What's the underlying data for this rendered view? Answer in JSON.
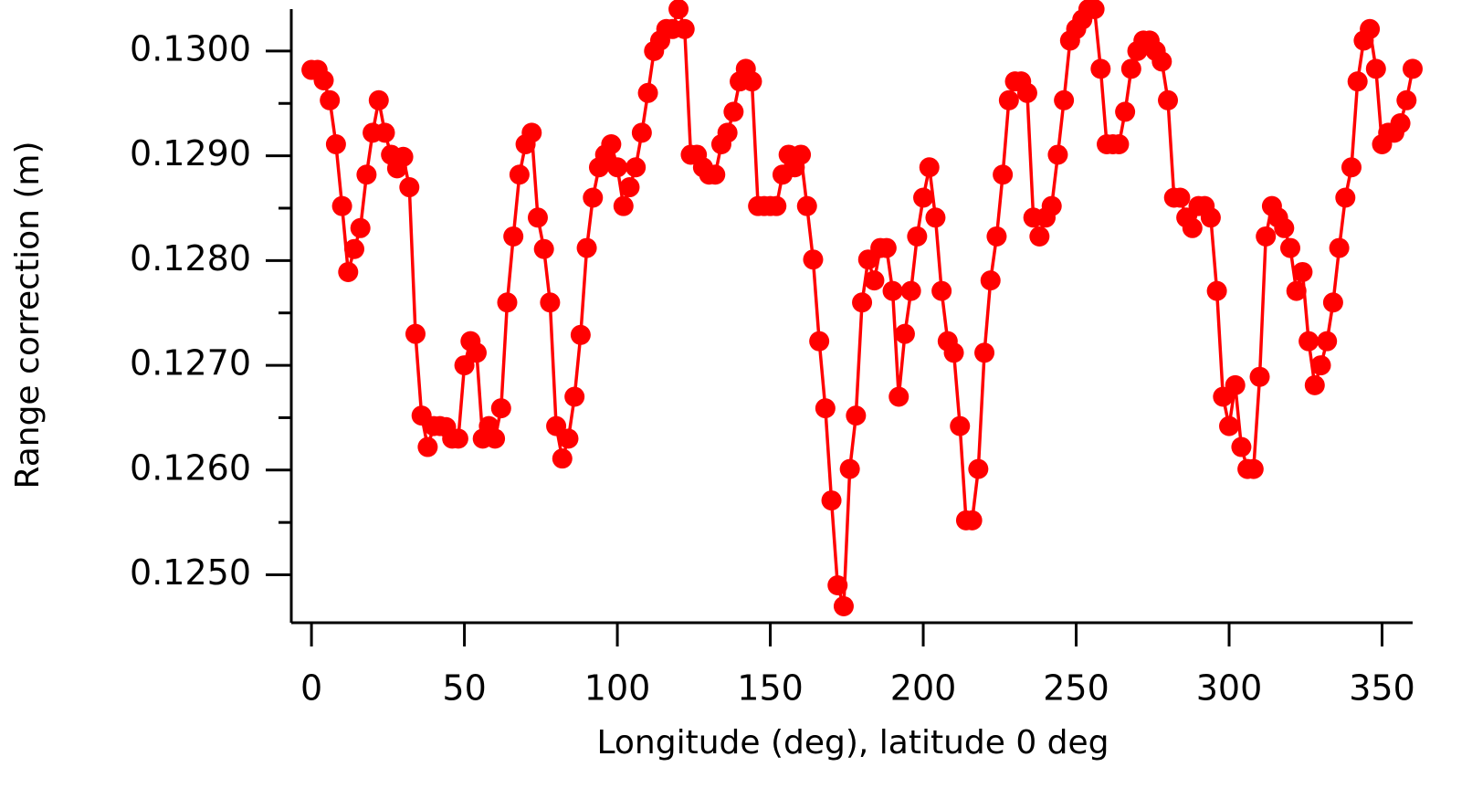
{
  "chart_data": {
    "type": "line",
    "x_label": "Longitude (deg), latitude 0 deg",
    "y_label": "Range correction (m)",
    "xlim": [
      -6,
      360
    ],
    "ylim": [
      0.12456,
      0.1304
    ],
    "xticks": [
      0,
      50,
      100,
      150,
      200,
      250,
      300,
      350
    ],
    "yticks": [
      {
        "value": 0.125,
        "label": "0.1250"
      },
      {
        "value": 0.126,
        "label": "0.1260"
      },
      {
        "value": 0.127,
        "label": "0.1270"
      },
      {
        "value": 0.128,
        "label": "0.1280"
      },
      {
        "value": 0.129,
        "label": "0.1290"
      },
      {
        "value": 0.13,
        "label": "0.1300"
      }
    ],
    "yminorticks": [
      0.1255,
      0.1265,
      0.1275,
      0.1285,
      0.1295
    ],
    "grid": false,
    "series": [
      {
        "color": "#ff0000",
        "x": [
          0,
          2,
          4,
          6,
          8,
          10,
          12,
          14,
          16,
          18,
          20,
          22,
          24,
          26,
          28,
          30,
          32,
          34,
          36,
          38,
          40,
          42,
          44,
          46,
          48,
          50,
          52,
          54,
          56,
          58,
          60,
          62,
          64,
          66,
          68,
          70,
          72,
          74,
          76,
          78,
          80,
          82,
          84,
          86,
          88,
          90,
          92,
          94,
          96,
          98,
          100,
          102,
          104,
          106,
          108,
          110,
          112,
          114,
          116,
          118,
          120,
          122,
          124,
          126,
          128,
          130,
          132,
          134,
          136,
          138,
          140,
          142,
          144,
          146,
          148,
          150,
          152,
          154,
          156,
          158,
          160,
          162,
          164,
          166,
          168,
          170,
          172,
          174,
          176,
          178,
          180,
          182,
          184,
          186,
          188,
          190,
          192,
          194,
          196,
          198,
          200,
          202,
          204,
          206,
          208,
          210,
          212,
          214,
          216,
          218,
          220,
          222,
          224,
          226,
          228,
          230,
          232,
          234,
          236,
          238,
          240,
          242,
          244,
          246,
          248,
          250,
          252,
          254,
          256,
          258,
          260,
          262,
          264,
          266,
          268,
          270,
          272,
          274,
          276,
          278,
          280,
          282,
          284,
          286,
          288,
          290,
          292,
          294,
          296,
          298,
          300,
          302,
          304,
          306,
          308,
          310,
          312,
          314,
          316,
          318,
          320,
          322,
          324,
          326,
          328,
          330,
          332,
          334,
          336,
          338,
          340,
          342,
          344,
          346,
          348,
          350,
          352,
          354,
          356,
          358,
          360
        ],
        "values": [
          0.12982,
          0.12982,
          0.12972,
          0.12953,
          0.12911,
          0.12852,
          0.12789,
          0.12811,
          0.12831,
          0.12882,
          0.12922,
          0.12953,
          0.12922,
          0.12901,
          0.12888,
          0.12899,
          0.1287,
          0.1273,
          0.12652,
          0.12622,
          0.12642,
          0.12642,
          0.12641,
          0.1263,
          0.1263,
          0.127,
          0.12723,
          0.12712,
          0.1263,
          0.12642,
          0.1263,
          0.12659,
          0.1276,
          0.12823,
          0.12882,
          0.12911,
          0.12922,
          0.12841,
          0.12811,
          0.1276,
          0.12642,
          0.12611,
          0.1263,
          0.1267,
          0.12729,
          0.12812,
          0.1286,
          0.12889,
          0.12901,
          0.12911,
          0.12889,
          0.12852,
          0.1287,
          0.12889,
          0.12922,
          0.1296,
          0.13,
          0.1301,
          0.13021,
          0.13021,
          0.1304,
          0.13021,
          0.12901,
          0.12901,
          0.12889,
          0.12882,
          0.12882,
          0.12911,
          0.12922,
          0.12942,
          0.12971,
          0.12983,
          0.12971,
          0.12852,
          0.12852,
          0.12852,
          0.12852,
          0.12882,
          0.12901,
          0.12889,
          0.12901,
          0.12852,
          0.12801,
          0.12723,
          0.12659,
          0.12571,
          0.1249,
          0.1247,
          0.12601,
          0.12652,
          0.1276,
          0.12801,
          0.12781,
          0.12812,
          0.12812,
          0.12771,
          0.1267,
          0.1273,
          0.12771,
          0.12823,
          0.1286,
          0.12889,
          0.12841,
          0.12771,
          0.12723,
          0.12712,
          0.12642,
          0.12552,
          0.12552,
          0.12601,
          0.12712,
          0.12781,
          0.12823,
          0.12882,
          0.12953,
          0.12971,
          0.12971,
          0.1296,
          0.12841,
          0.12823,
          0.12841,
          0.12852,
          0.12901,
          0.12953,
          0.1301,
          0.13021,
          0.1303,
          0.1304,
          0.1304,
          0.12983,
          0.12911,
          0.12911,
          0.12911,
          0.12942,
          0.12983,
          0.13,
          0.1301,
          0.1301,
          0.13,
          0.1299,
          0.12953,
          0.1286,
          0.1286,
          0.12841,
          0.12831,
          0.12852,
          0.12852,
          0.12841,
          0.12771,
          0.1267,
          0.12642,
          0.12681,
          0.12622,
          0.12601,
          0.12601,
          0.12689,
          0.12823,
          0.12852,
          0.12841,
          0.12831,
          0.12812,
          0.12771,
          0.12789,
          0.12723,
          0.12681,
          0.127,
          0.12723,
          0.1276,
          0.12812,
          0.1286,
          0.12889,
          0.12971,
          0.1301,
          0.13021,
          0.12983,
          0.12911,
          0.12922,
          0.12922,
          0.12931,
          0.12953,
          0.12983
        ]
      }
    ]
  }
}
